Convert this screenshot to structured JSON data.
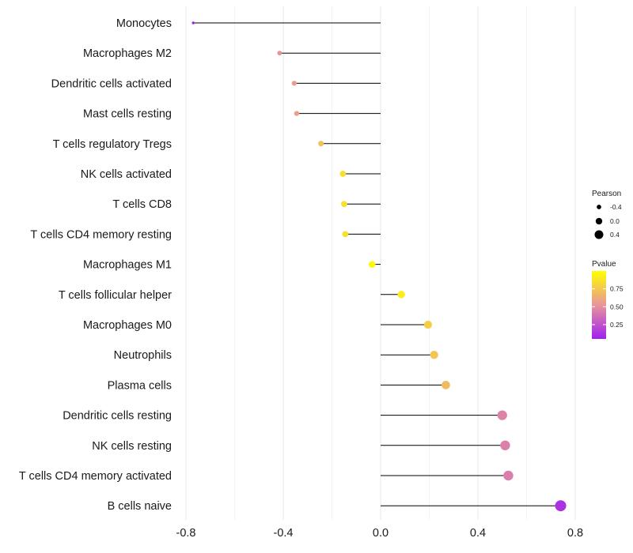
{
  "chart_data": {
    "type": "lollipop",
    "title": "",
    "xlabel": "",
    "ylabel": "",
    "xlim": [
      -0.8,
      0.8
    ],
    "xticks": [
      -0.8,
      -0.4,
      0.0,
      0.4,
      0.8
    ],
    "xtick_labels": [
      "-0.8",
      "-0.4",
      "0.0",
      "0.4",
      "0.8"
    ],
    "grid": true,
    "categories": [
      "Monocytes",
      "Macrophages M2",
      "Dendritic cells activated",
      "Mast cells resting",
      "T cells regulatory  Tregs",
      "NK cells activated",
      "T cells CD8",
      "T cells CD4 memory resting",
      "Macrophages M1",
      "T cells follicular helper",
      "Macrophages M0",
      "Neutrophils",
      "Plasma cells",
      "Dendritic cells resting",
      "NK cells resting",
      "T cells CD4 memory activated",
      "B cells naive"
    ],
    "pearson": [
      -0.77,
      -0.415,
      -0.355,
      -0.345,
      -0.245,
      -0.155,
      -0.15,
      -0.145,
      -0.035,
      0.085,
      0.195,
      0.22,
      0.268,
      0.5,
      0.512,
      0.525,
      0.74
    ],
    "pvalue": [
      0.05,
      0.52,
      0.56,
      0.58,
      0.72,
      0.85,
      0.86,
      0.86,
      0.97,
      0.92,
      0.78,
      0.74,
      0.7,
      0.45,
      0.44,
      0.43,
      0.12
    ],
    "legend_pearson": {
      "title": "Pearson",
      "labels": [
        "-0.4",
        "0.0",
        "0.4"
      ],
      "values": [
        -0.4,
        0.0,
        0.4
      ]
    },
    "legend_pvalue": {
      "title": "Pvalue",
      "labels": [
        "0.75",
        "0.50",
        "0.25"
      ],
      "values": [
        0.75,
        0.5,
        0.25
      ],
      "range": [
        0.05,
        1.0
      ]
    },
    "colors": {
      "high": "#ffff00",
      "mid": "#e8959a",
      "low": "#a020f0",
      "stem": "#000000",
      "grid": "#ebebeb"
    }
  }
}
